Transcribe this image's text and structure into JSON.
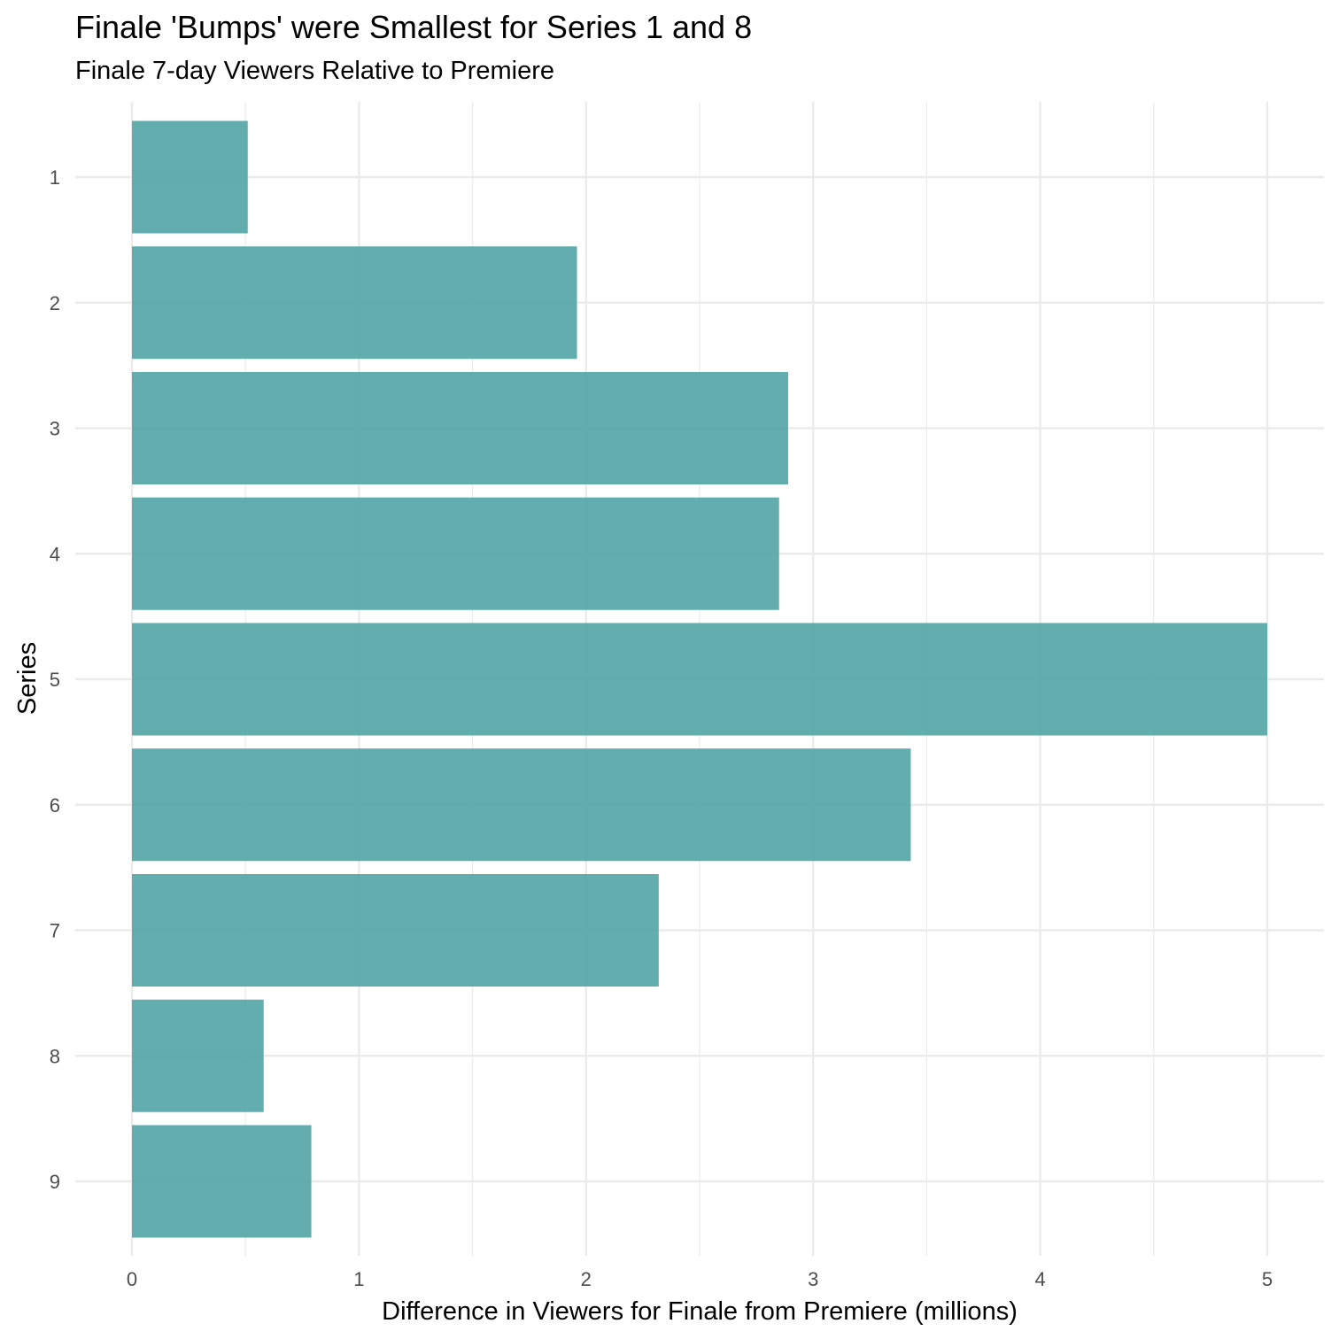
{
  "chart_data": {
    "type": "bar",
    "orientation": "horizontal",
    "title": "Finale 'Bumps' were Smallest for Series 1 and 8",
    "subtitle": "Finale 7-day Viewers Relative to Premiere",
    "xlabel": "Difference in Viewers for Finale from Premiere (millions)",
    "ylabel": "Series",
    "categories": [
      "1",
      "2",
      "3",
      "4",
      "5",
      "6",
      "7",
      "8",
      "9"
    ],
    "values": [
      0.51,
      1.96,
      2.89,
      2.85,
      5.0,
      3.43,
      2.32,
      0.58,
      0.79
    ],
    "xlim": [
      0,
      5
    ],
    "xticks": [
      "0",
      "1",
      "2",
      "3",
      "4",
      "5"
    ],
    "grid": true,
    "bar_color": "#4ca3a3",
    "grid_color": "#ebebeb"
  }
}
